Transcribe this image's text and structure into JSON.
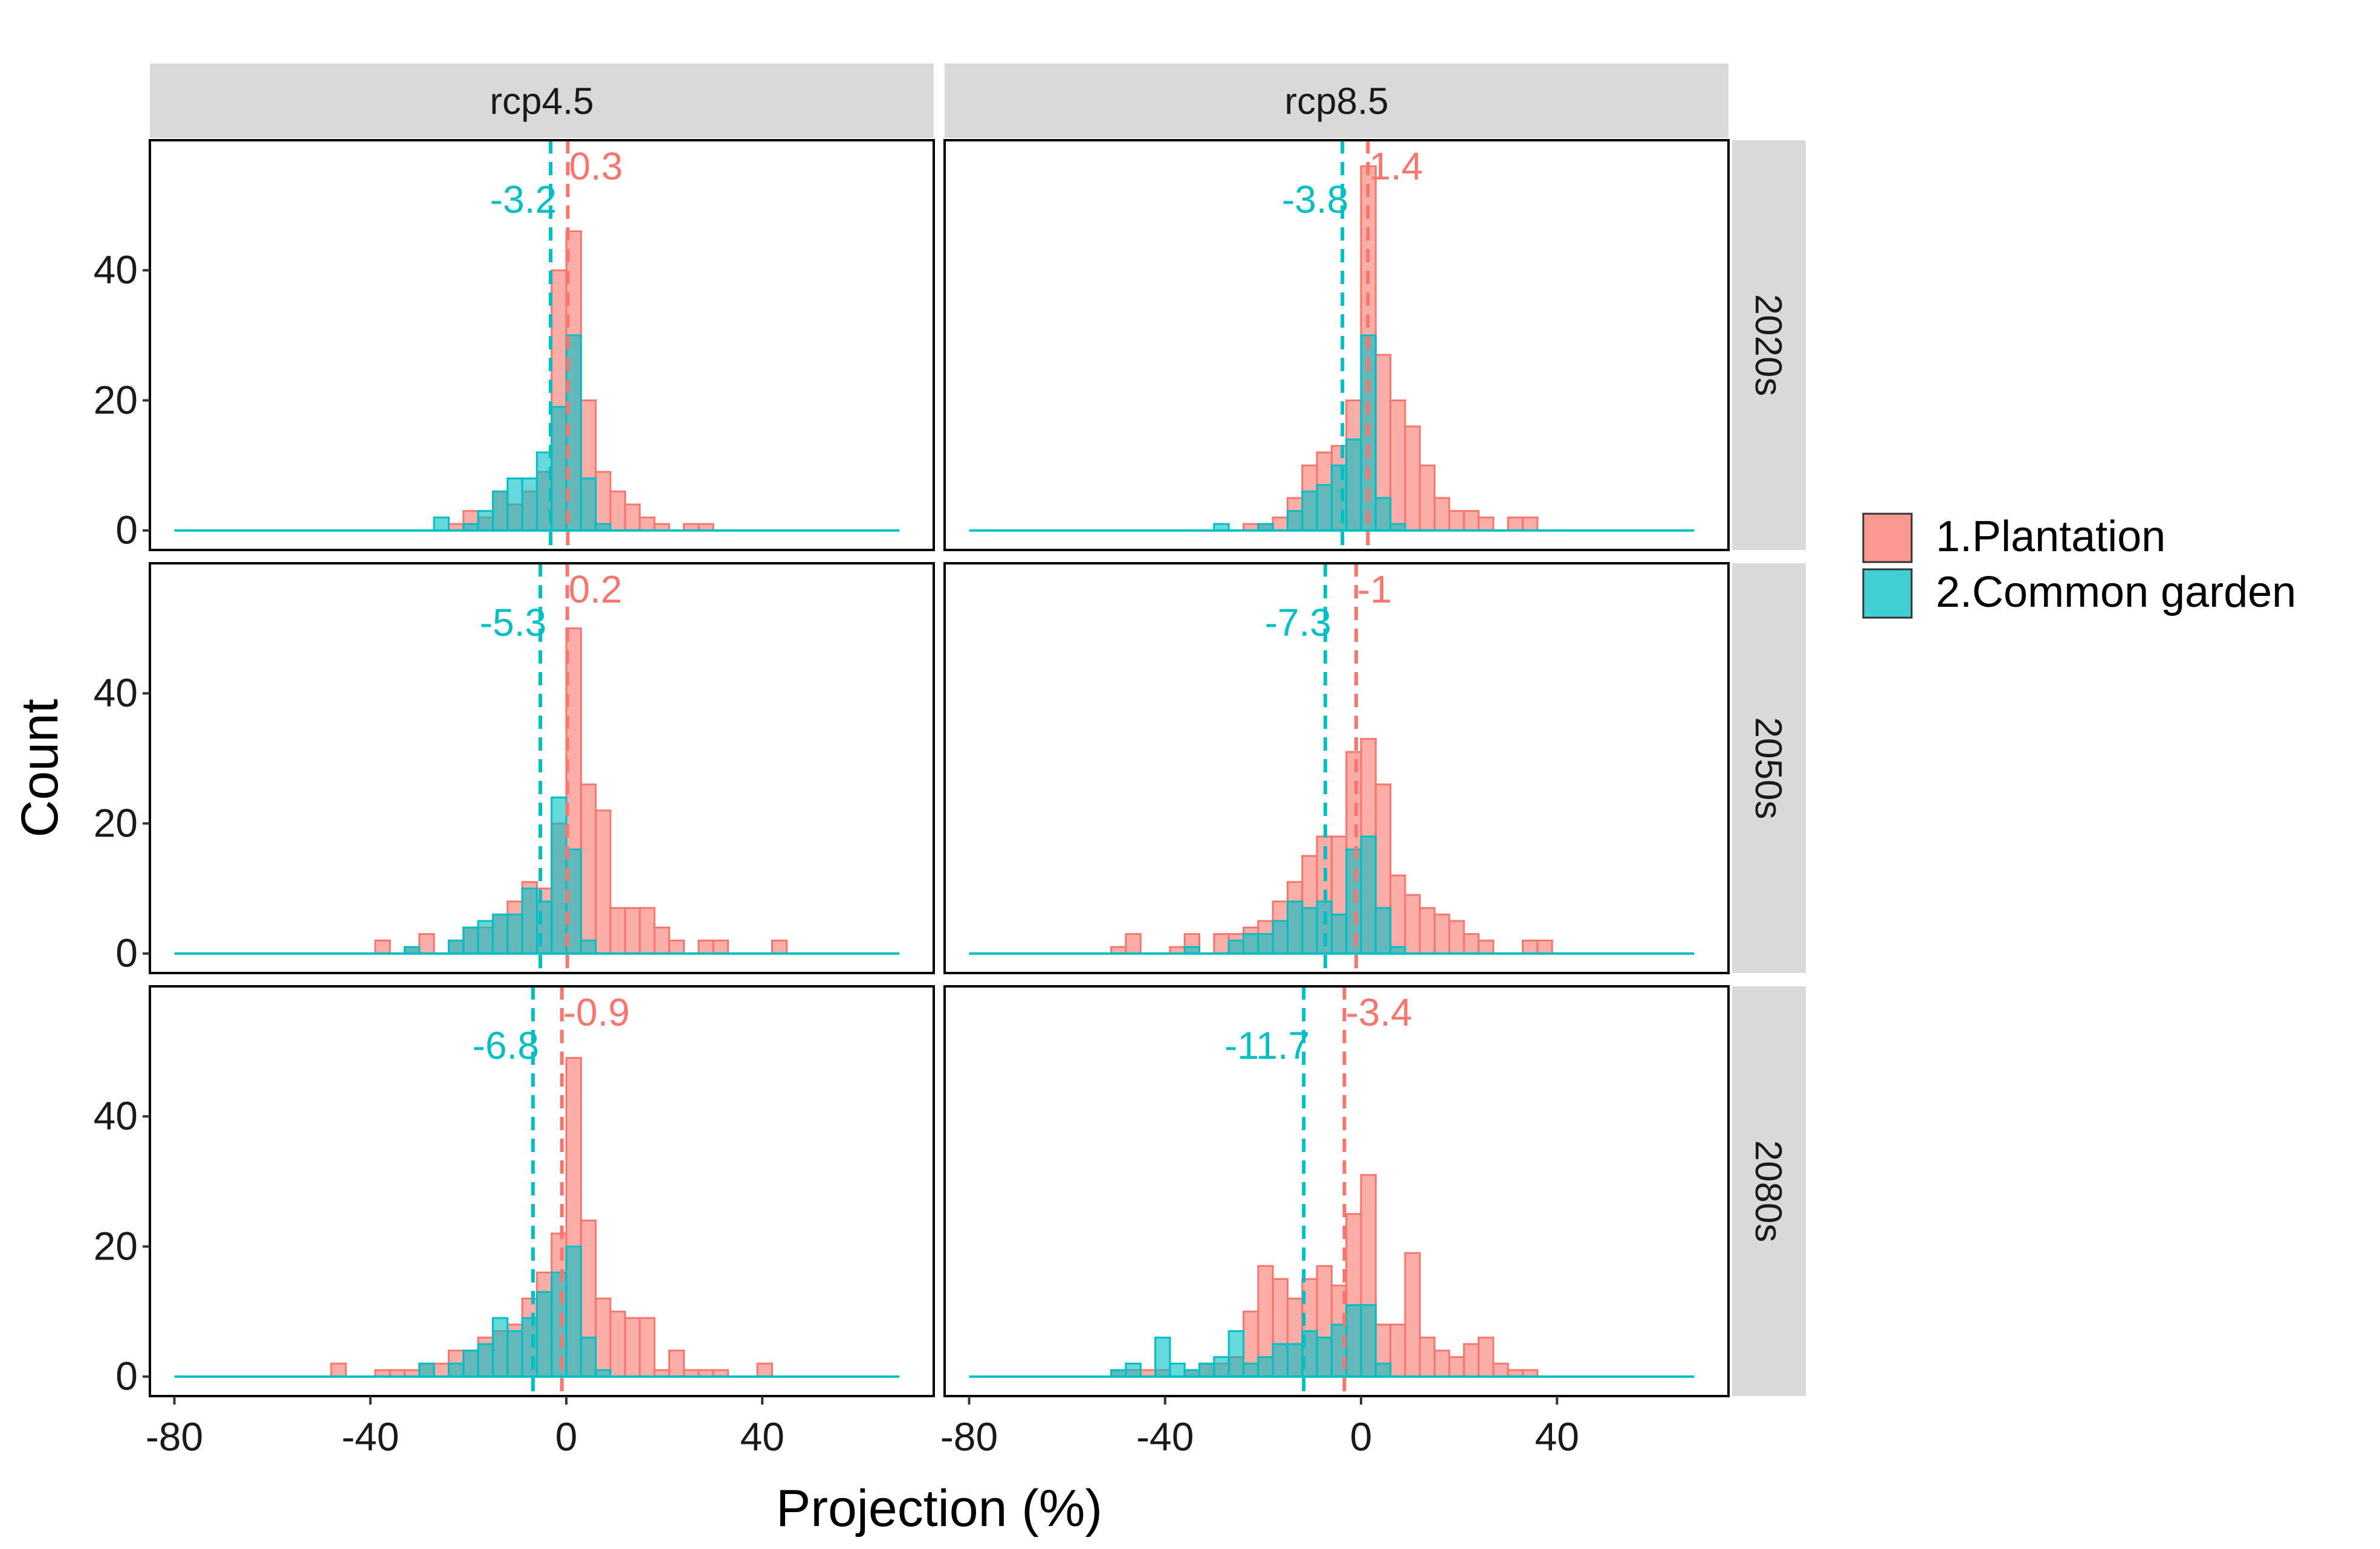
{
  "chart_data": {
    "type": "histogram",
    "facet_columns": [
      "rcp4.5",
      "rcp8.5"
    ],
    "facet_rows": [
      "2020s",
      "2050s",
      "2080s"
    ],
    "xlabel": "Projection (%)",
    "ylabel": "Count",
    "xlim": [
      -85,
      75
    ],
    "ylim": [
      -3,
      60
    ],
    "x_ticks": [
      "-80",
      "-40",
      "0",
      "40"
    ],
    "y_ticks": [
      "0",
      "20",
      "40"
    ],
    "bin_width": 3,
    "legend": {
      "position": "right",
      "entries": [
        {
          "label": "1.Plantation",
          "color": "#F8766D"
        },
        {
          "label": "2.Common garden",
          "color": "#00BFC4"
        }
      ]
    },
    "colors": {
      "plantation": "#F8766D",
      "common_garden": "#00BFC4",
      "strip": "#d9d9d9"
    },
    "panels": [
      {
        "col": 0,
        "row": 0,
        "plantation": {
          "mean": 0.3,
          "mean_label": "0.3",
          "bins": [
            [
              -24,
              1
            ],
            [
              -21,
              3
            ],
            [
              -18,
              2
            ],
            [
              -15,
              6
            ],
            [
              -12,
              4
            ],
            [
              -9,
              6
            ],
            [
              -6,
              9
            ],
            [
              -3,
              40
            ],
            [
              0,
              46
            ],
            [
              3,
              20
            ],
            [
              6,
              9
            ],
            [
              9,
              6
            ],
            [
              12,
              4
            ],
            [
              15,
              2
            ],
            [
              18,
              1
            ],
            [
              24,
              1
            ],
            [
              27,
              1
            ]
          ]
        },
        "common_garden": {
          "mean": -3.2,
          "mean_label": "-3.2",
          "bins": [
            [
              -27,
              2
            ],
            [
              -21,
              1
            ],
            [
              -18,
              3
            ],
            [
              -15,
              6
            ],
            [
              -12,
              8
            ],
            [
              -9,
              8
            ],
            [
              -6,
              12
            ],
            [
              -3,
              19
            ],
            [
              0,
              30
            ],
            [
              3,
              8
            ],
            [
              6,
              1
            ]
          ]
        }
      },
      {
        "col": 1,
        "row": 0,
        "plantation": {
          "mean": 1.4,
          "mean_label": "1.4",
          "bins": [
            [
              -24,
              1
            ],
            [
              -21,
              1
            ],
            [
              -18,
              2
            ],
            [
              -15,
              5
            ],
            [
              -12,
              10
            ],
            [
              -9,
              12
            ],
            [
              -6,
              13
            ],
            [
              -3,
              20
            ],
            [
              0,
              56
            ],
            [
              3,
              27
            ],
            [
              6,
              20
            ],
            [
              9,
              16
            ],
            [
              12,
              10
            ],
            [
              15,
              5
            ],
            [
              18,
              3
            ],
            [
              21,
              3
            ],
            [
              24,
              2
            ],
            [
              30,
              2
            ],
            [
              33,
              2
            ]
          ]
        },
        "common_garden": {
          "mean": -3.8,
          "mean_label": "-3.8",
          "bins": [
            [
              -30,
              1
            ],
            [
              -21,
              1
            ],
            [
              -15,
              3
            ],
            [
              -12,
              6
            ],
            [
              -9,
              7
            ],
            [
              -6,
              10
            ],
            [
              -3,
              14
            ],
            [
              0,
              30
            ],
            [
              3,
              5
            ],
            [
              6,
              1
            ]
          ]
        }
      },
      {
        "col": 0,
        "row": 1,
        "plantation": {
          "mean": 0.2,
          "mean_label": "0.2",
          "bins": [
            [
              -39,
              2
            ],
            [
              -33,
              1
            ],
            [
              -30,
              3
            ],
            [
              -24,
              2
            ],
            [
              -21,
              4
            ],
            [
              -18,
              4
            ],
            [
              -15,
              6
            ],
            [
              -12,
              8
            ],
            [
              -9,
              11
            ],
            [
              -6,
              10
            ],
            [
              -3,
              20
            ],
            [
              0,
              50
            ],
            [
              3,
              26
            ],
            [
              6,
              22
            ],
            [
              9,
              7
            ],
            [
              12,
              7
            ],
            [
              15,
              7
            ],
            [
              18,
              4
            ],
            [
              21,
              2
            ],
            [
              27,
              2
            ],
            [
              30,
              2
            ],
            [
              42,
              2
            ]
          ]
        },
        "common_garden": {
          "mean": -5.3,
          "mean_label": "-5.3",
          "bins": [
            [
              -33,
              1
            ],
            [
              -24,
              2
            ],
            [
              -21,
              4
            ],
            [
              -18,
              5
            ],
            [
              -15,
              6
            ],
            [
              -12,
              6
            ],
            [
              -9,
              10
            ],
            [
              -6,
              8
            ],
            [
              -3,
              24
            ],
            [
              0,
              16
            ],
            [
              3,
              2
            ]
          ]
        }
      },
      {
        "col": 1,
        "row": 1,
        "plantation": {
          "mean": -1,
          "mean_label": "-1",
          "bins": [
            [
              -51,
              1
            ],
            [
              -48,
              3
            ],
            [
              -39,
              1
            ],
            [
              -36,
              3
            ],
            [
              -30,
              3
            ],
            [
              -27,
              3
            ],
            [
              -24,
              4
            ],
            [
              -21,
              5
            ],
            [
              -18,
              8
            ],
            [
              -15,
              11
            ],
            [
              -12,
              15
            ],
            [
              -9,
              18
            ],
            [
              -6,
              18
            ],
            [
              -3,
              31
            ],
            [
              0,
              33
            ],
            [
              3,
              26
            ],
            [
              6,
              12
            ],
            [
              9,
              9
            ],
            [
              12,
              7
            ],
            [
              15,
              6
            ],
            [
              18,
              5
            ],
            [
              21,
              3
            ],
            [
              24,
              2
            ],
            [
              33,
              2
            ],
            [
              36,
              2
            ]
          ]
        },
        "common_garden": {
          "mean": -7.3,
          "mean_label": "-7.3",
          "bins": [
            [
              -36,
              1
            ],
            [
              -27,
              2
            ],
            [
              -24,
              3
            ],
            [
              -21,
              3
            ],
            [
              -18,
              5
            ],
            [
              -15,
              8
            ],
            [
              -12,
              7
            ],
            [
              -9,
              8
            ],
            [
              -6,
              6
            ],
            [
              -3,
              16
            ],
            [
              0,
              18
            ],
            [
              3,
              7
            ],
            [
              6,
              1
            ]
          ]
        }
      },
      {
        "col": 0,
        "row": 2,
        "plantation": {
          "mean": -0.9,
          "mean_label": "-0.9",
          "bins": [
            [
              -48,
              2
            ],
            [
              -39,
              1
            ],
            [
              -36,
              1
            ],
            [
              -33,
              1
            ],
            [
              -30,
              2
            ],
            [
              -27,
              2
            ],
            [
              -24,
              4
            ],
            [
              -21,
              4
            ],
            [
              -18,
              6
            ],
            [
              -15,
              7
            ],
            [
              -12,
              8
            ],
            [
              -9,
              12
            ],
            [
              -6,
              16
            ],
            [
              -3,
              22
            ],
            [
              0,
              49
            ],
            [
              3,
              24
            ],
            [
              6,
              12
            ],
            [
              9,
              10
            ],
            [
              12,
              9
            ],
            [
              15,
              9
            ],
            [
              18,
              1
            ],
            [
              21,
              4
            ],
            [
              24,
              1
            ],
            [
              27,
              1
            ],
            [
              30,
              1
            ],
            [
              39,
              2
            ]
          ]
        },
        "common_garden": {
          "mean": -6.8,
          "mean_label": "-6.8",
          "bins": [
            [
              -30,
              2
            ],
            [
              -24,
              2
            ],
            [
              -21,
              4
            ],
            [
              -18,
              5
            ],
            [
              -15,
              9
            ],
            [
              -12,
              7
            ],
            [
              -9,
              9
            ],
            [
              -6,
              13
            ],
            [
              -3,
              16
            ],
            [
              0,
              20
            ],
            [
              3,
              6
            ],
            [
              6,
              1
            ]
          ]
        }
      },
      {
        "col": 1,
        "row": 2,
        "plantation": {
          "mean": -3.4,
          "mean_label": "-3.4",
          "bins": [
            [
              -51,
              1
            ],
            [
              -48,
              1
            ],
            [
              -45,
              1
            ],
            [
              -42,
              1
            ],
            [
              -36,
              1
            ],
            [
              -33,
              2
            ],
            [
              -30,
              2
            ],
            [
              -27,
              3
            ],
            [
              -24,
              10
            ],
            [
              -21,
              17
            ],
            [
              -18,
              15
            ],
            [
              -15,
              12
            ],
            [
              -12,
              15
            ],
            [
              -9,
              17
            ],
            [
              -6,
              14
            ],
            [
              -3,
              25
            ],
            [
              0,
              31
            ],
            [
              3,
              8
            ],
            [
              6,
              8
            ],
            [
              9,
              19
            ],
            [
              12,
              6
            ],
            [
              15,
              4
            ],
            [
              18,
              3
            ],
            [
              21,
              5
            ],
            [
              24,
              6
            ],
            [
              27,
              2
            ],
            [
              30,
              1
            ],
            [
              33,
              1
            ]
          ]
        },
        "common_garden": {
          "mean": -11.7,
          "mean_label": "-11.7",
          "bins": [
            [
              -51,
              1
            ],
            [
              -48,
              2
            ],
            [
              -42,
              6
            ],
            [
              -39,
              2
            ],
            [
              -36,
              1
            ],
            [
              -33,
              2
            ],
            [
              -30,
              3
            ],
            [
              -27,
              7
            ],
            [
              -24,
              2
            ],
            [
              -21,
              3
            ],
            [
              -18,
              5
            ],
            [
              -15,
              5
            ],
            [
              -12,
              7
            ],
            [
              -9,
              6
            ],
            [
              -6,
              8
            ],
            [
              -3,
              11
            ],
            [
              0,
              11
            ],
            [
              3,
              2
            ]
          ]
        }
      }
    ]
  }
}
